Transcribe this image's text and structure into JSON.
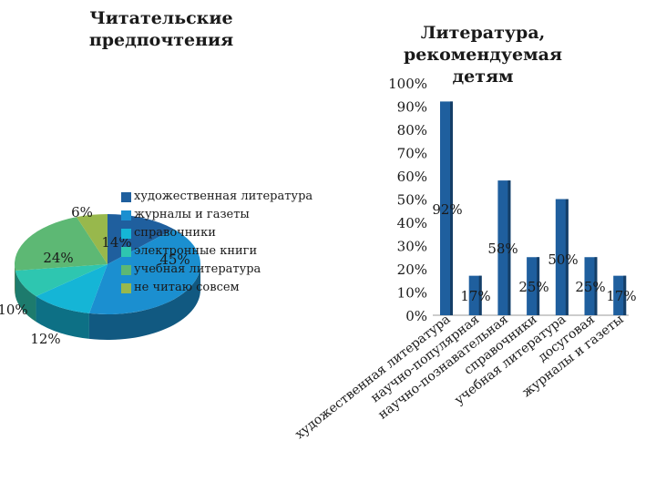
{
  "chart_data": [
    {
      "type": "pie",
      "title": "Читательские предпочтения",
      "slices": [
        {
          "label": "художественная литература",
          "value": 14,
          "value_label": "14%",
          "color": "#1f5f9e"
        },
        {
          "label": "журналы и газеты",
          "value": 45,
          "value_label": "45%",
          "color": "#1b8fd0"
        },
        {
          "label": "справочники",
          "value": 12,
          "value_label": "12%",
          "color": "#15b5d6"
        },
        {
          "label": "электронные книги",
          "value": 10,
          "value_label": "10%",
          "color": "#2ec6b0"
        },
        {
          "label": "учебная литература",
          "value": 24,
          "value_label": "24%",
          "color": "#5db874"
        },
        {
          "label": "не читаю совсем",
          "value": 6,
          "value_label": "6%",
          "color": "#98b84c"
        }
      ],
      "legend_position": "right"
    },
    {
      "type": "bar",
      "title": "Литература, рекомендуемая детям",
      "categories": [
        "художественная литература",
        "научно-популярная",
        "научно-познавательная",
        "справочники",
        "учебная литература",
        "досуговая",
        "журналы и газеты"
      ],
      "values": [
        92,
        17,
        58,
        25,
        50,
        25,
        17
      ],
      "value_labels": [
        "92%",
        "17%",
        "58%",
        "25%",
        "50%",
        "25%",
        "17%"
      ],
      "ylim": [
        0,
        100
      ],
      "yticks": [
        "0%",
        "10%",
        "20%",
        "30%",
        "40%",
        "50%",
        "60%",
        "70%",
        "80%",
        "90%",
        "100%"
      ],
      "bar_color": "#1f5f9e",
      "grid": false
    }
  ]
}
